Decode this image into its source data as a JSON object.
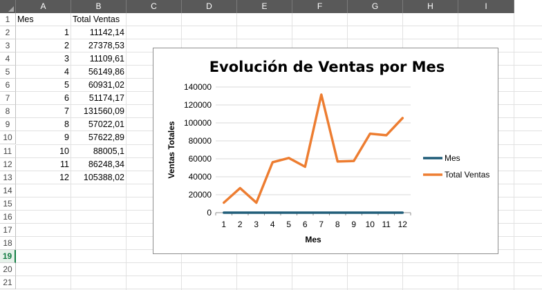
{
  "sheet": {
    "columns": [
      "A",
      "B",
      "C",
      "D",
      "E",
      "F",
      "G",
      "H",
      "I"
    ],
    "rows": [
      "1",
      "2",
      "3",
      "4",
      "5",
      "6",
      "7",
      "8",
      "9",
      "10",
      "11",
      "12",
      "13",
      "14",
      "15",
      "16",
      "17",
      "18",
      "19",
      "20",
      "21"
    ],
    "selected_row": "19",
    "header_a": "Mes",
    "header_b": "Total Ventas",
    "data": [
      {
        "mes": "1",
        "total": "11142,14"
      },
      {
        "mes": "2",
        "total": "27378,53"
      },
      {
        "mes": "3",
        "total": "11109,61"
      },
      {
        "mes": "4",
        "total": "56149,86"
      },
      {
        "mes": "5",
        "total": "60931,02"
      },
      {
        "mes": "6",
        "total": "51174,17"
      },
      {
        "mes": "7",
        "total": "131560,09"
      },
      {
        "mes": "8",
        "total": "57022,01"
      },
      {
        "mes": "9",
        "total": "57622,89"
      },
      {
        "mes": "10",
        "total": "88005,1"
      },
      {
        "mes": "11",
        "total": "86248,34"
      },
      {
        "mes": "12",
        "total": "105388,02"
      }
    ]
  },
  "chart_data": {
    "type": "line",
    "title": "Evolución de Ventas por Mes",
    "xlabel": "Mes",
    "ylabel": "Ventas Totales",
    "categories": [
      "1",
      "2",
      "3",
      "4",
      "5",
      "6",
      "7",
      "8",
      "9",
      "10",
      "11",
      "12"
    ],
    "ylim": [
      0,
      140000
    ],
    "yticks": [
      "0",
      "20000",
      "40000",
      "60000",
      "80000",
      "100000",
      "120000",
      "140000"
    ],
    "grid": true,
    "legend_position": "right",
    "series": [
      {
        "name": "Mes",
        "color": "#1f5c78",
        "values": [
          1,
          2,
          3,
          4,
          5,
          6,
          7,
          8,
          9,
          10,
          11,
          12
        ]
      },
      {
        "name": "Total Ventas",
        "color": "#ed7d31",
        "values": [
          11142.14,
          27378.53,
          11109.61,
          56149.86,
          60931.02,
          51174.17,
          131560.09,
          57022.01,
          57622.89,
          88005.1,
          86248.34,
          105388.02
        ]
      }
    ]
  }
}
